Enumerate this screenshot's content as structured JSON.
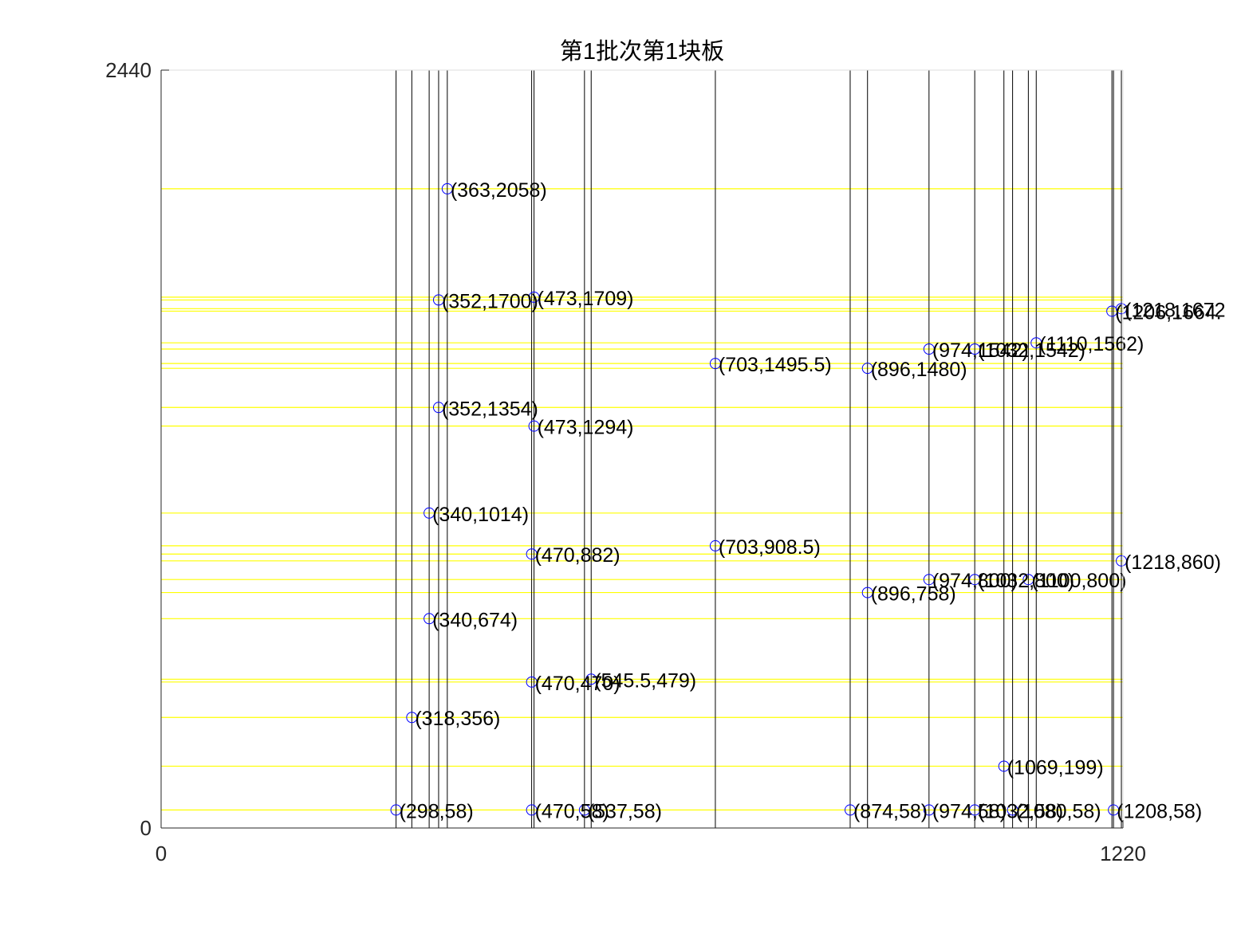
{
  "chart_data": {
    "type": "scatter",
    "title": "第1批次第1块板",
    "xlabel": "",
    "ylabel": "",
    "xlim": [
      0,
      1220
    ],
    "ylim": [
      0,
      2440
    ],
    "x_ticks": [
      "0",
      "1220"
    ],
    "y_ticks": [
      "0",
      "2440"
    ],
    "grid": false,
    "colors": {
      "vertical_lines": "#000000",
      "horizontal_lines": "#ffff00",
      "markers": "#0000ff",
      "axes": "#262626"
    },
    "vertical_lines_x": [
      298,
      318,
      340,
      352,
      363,
      470,
      473,
      537,
      545.5,
      703,
      874,
      896,
      974,
      1032,
      1069,
      1080,
      1100,
      1110,
      1206,
      1208,
      1218
    ],
    "horizontal_lines_y": [
      2058,
      1709,
      1700,
      1672,
      1664,
      1562,
      1542,
      1495.5,
      1480,
      1354,
      1294,
      1014,
      908.5,
      882,
      860,
      800,
      758,
      674,
      479,
      470,
      356,
      199,
      58
    ],
    "points": [
      {
        "x": 363,
        "y": 2058,
        "label": "(363,2058)"
      },
      {
        "x": 352,
        "y": 1700,
        "label": "(352,1700)"
      },
      {
        "x": 473,
        "y": 1709,
        "label": "(473,1709)"
      },
      {
        "x": 1218,
        "y": 1672,
        "label": "(1218,1672"
      },
      {
        "x": 1206,
        "y": 1664,
        "label": "(1206,1664."
      },
      {
        "x": 974,
        "y": 1542,
        "label": "(974,1542)"
      },
      {
        "x": 1032,
        "y": 1542,
        "label": "(1032,1542)"
      },
      {
        "x": 1110,
        "y": 1562,
        "label": "(1110,1562)"
      },
      {
        "x": 703,
        "y": 1495.5,
        "label": "(703,1495.5)"
      },
      {
        "x": 896,
        "y": 1480,
        "label": "(896,1480)"
      },
      {
        "x": 352,
        "y": 1354,
        "label": "(352,1354)"
      },
      {
        "x": 473,
        "y": 1294,
        "label": "(473,1294)"
      },
      {
        "x": 340,
        "y": 1014,
        "label": "(340,1014)"
      },
      {
        "x": 703,
        "y": 908.5,
        "label": "(703,908.5)"
      },
      {
        "x": 470,
        "y": 882,
        "label": "(470,882)"
      },
      {
        "x": 1218,
        "y": 860,
        "label": "(1218,860)"
      },
      {
        "x": 974,
        "y": 800,
        "label": "(974,800)"
      },
      {
        "x": 1032,
        "y": 800,
        "label": "(1032,800)"
      },
      {
        "x": 1100,
        "y": 800,
        "label": "(1100,800)"
      },
      {
        "x": 896,
        "y": 758,
        "label": "(896,758)"
      },
      {
        "x": 340,
        "y": 674,
        "label": "(340,674)"
      },
      {
        "x": 470,
        "y": 470,
        "label": "(470,470)"
      },
      {
        "x": 545.5,
        "y": 479,
        "label": "(545.5,479)"
      },
      {
        "x": 318,
        "y": 356,
        "label": "(318,356)"
      },
      {
        "x": 1069,
        "y": 199,
        "label": "(1069,199)"
      },
      {
        "x": 298,
        "y": 58,
        "label": "(298,58)"
      },
      {
        "x": 470,
        "y": 58,
        "label": "(470,58)"
      },
      {
        "x": 537,
        "y": 58,
        "label": "(537,58)"
      },
      {
        "x": 874,
        "y": 58,
        "label": "(874,58)"
      },
      {
        "x": 974,
        "y": 58,
        "label": "(974,58)"
      },
      {
        "x": 1032,
        "y": 58,
        "label": "(1032,58)"
      },
      {
        "x": 1080,
        "y": 58,
        "label": "(1080,58)"
      },
      {
        "x": 1208,
        "y": 58,
        "label": "(1208,58)"
      }
    ]
  }
}
